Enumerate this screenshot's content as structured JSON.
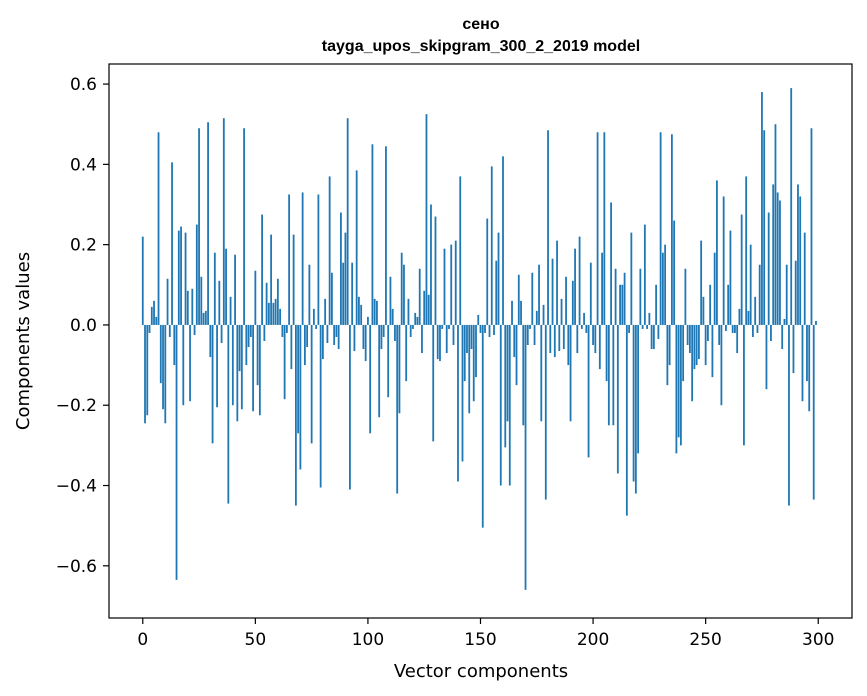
{
  "colors": {
    "bar": "#1f77b4",
    "background": "#ffffff",
    "axis": "#000000"
  },
  "chart_data": {
    "type": "bar",
    "title": "сено",
    "subtitle": "tayga_upos_skipgram_300_2_2019 model",
    "xlabel": "Vector components",
    "ylabel": "Components values",
    "xlim": [
      -15,
      315
    ],
    "ylim": [
      -0.73,
      0.65
    ],
    "xticks": [
      0,
      50,
      100,
      150,
      200,
      250,
      300
    ],
    "xtick_labels": [
      "0",
      "50",
      "100",
      "150",
      "200",
      "250",
      "300"
    ],
    "yticks": [
      -0.6,
      -0.4,
      -0.2,
      0.0,
      0.2,
      0.4,
      0.6
    ],
    "ytick_labels": [
      "−0.6",
      "−0.4",
      "−0.2",
      "0.0",
      "0.2",
      "0.4",
      "0.6"
    ],
    "grid": false,
    "legend": "none",
    "x_start": 0,
    "values": [
      0.22,
      -0.245,
      -0.225,
      -0.02,
      0.045,
      0.06,
      0.02,
      0.48,
      -0.145,
      -0.21,
      -0.245,
      0.115,
      -0.03,
      0.405,
      -0.1,
      -0.635,
      0.235,
      0.245,
      -0.2,
      0.23,
      0.085,
      -0.19,
      0.09,
      -0.025,
      0.25,
      0.49,
      0.12,
      0.03,
      0.035,
      0.505,
      -0.08,
      -0.295,
      0.18,
      -0.205,
      0.11,
      -0.045,
      0.515,
      0.19,
      -0.445,
      0.07,
      -0.2,
      0.175,
      -0.24,
      -0.115,
      -0.21,
      0.49,
      -0.1,
      -0.055,
      -0.03,
      -0.215,
      0.135,
      -0.15,
      -0.225,
      0.275,
      -0.04,
      0.105,
      0.055,
      0.225,
      0.055,
      0.065,
      0.115,
      0.04,
      -0.03,
      -0.185,
      -0.02,
      0.325,
      -0.11,
      0.225,
      -0.45,
      -0.27,
      -0.36,
      0.33,
      -0.1,
      -0.055,
      0.15,
      -0.295,
      0.04,
      -0.01,
      0.325,
      -0.405,
      -0.085,
      0.065,
      -0.045,
      0.37,
      0.13,
      -0.05,
      -0.03,
      -0.06,
      0.28,
      0.155,
      0.23,
      0.515,
      -0.41,
      0.155,
      -0.065,
      0.385,
      0.07,
      0.05,
      -0.06,
      -0.09,
      0.02,
      -0.27,
      0.45,
      0.065,
      0.06,
      -0.23,
      -0.06,
      -0.03,
      0.445,
      -0.18,
      0.12,
      0.04,
      -0.04,
      -0.42,
      -0.22,
      0.18,
      0.15,
      -0.14,
      0.065,
      -0.03,
      -0.01,
      0.03,
      0.02,
      0.14,
      -0.07,
      0.085,
      0.525,
      0.075,
      0.3,
      -0.29,
      0.27,
      -0.085,
      -0.09,
      -0.01,
      0.19,
      -0.07,
      -0.01,
      0.2,
      -0.05,
      0.21,
      -0.39,
      0.37,
      -0.34,
      -0.14,
      -0.07,
      -0.22,
      -0.06,
      -0.19,
      -0.13,
      0.025,
      -0.02,
      -0.505,
      -0.02,
      0.265,
      -0.03,
      0.395,
      -0.025,
      0.16,
      0.23,
      -0.4,
      0.42,
      -0.305,
      -0.24,
      -0.4,
      0.06,
      -0.08,
      -0.15,
      0.125,
      0.06,
      -0.25,
      -0.66,
      -0.05,
      -0.01,
      0.13,
      -0.05,
      0.035,
      0.15,
      -0.24,
      0.05,
      -0.435,
      0.485,
      -0.07,
      0.165,
      -0.08,
      0.21,
      -0.065,
      0.065,
      -0.06,
      0.12,
      -0.1,
      -0.24,
      0.11,
      0.19,
      -0.07,
      0.22,
      -0.01,
      0.03,
      -0.02,
      -0.33,
      0.155,
      -0.05,
      -0.07,
      0.48,
      -0.11,
      0.18,
      0.48,
      -0.14,
      -0.25,
      0.305,
      -0.25,
      0.14,
      -0.37,
      0.1,
      0.1,
      0.13,
      -0.475,
      -0.02,
      0.23,
      -0.39,
      -0.42,
      -0.32,
      0.14,
      -0.01,
      0.25,
      -0.01,
      0.03,
      -0.06,
      -0.06,
      0.1,
      -0.035,
      0.48,
      0.18,
      0.2,
      -0.15,
      -0.1,
      0.475,
      0.26,
      -0.32,
      -0.28,
      -0.3,
      -0.14,
      0.14,
      -0.05,
      -0.07,
      -0.19,
      -0.11,
      -0.1,
      -0.085,
      0.21,
      0.07,
      -0.1,
      -0.04,
      0.1,
      -0.13,
      0.18,
      0.36,
      -0.05,
      -0.2,
      0.32,
      -0.015,
      0.1,
      0.235,
      -0.02,
      -0.02,
      -0.07,
      0.04,
      0.275,
      -0.3,
      0.37,
      0.035,
      0.2,
      -0.03,
      0.07,
      -0.02,
      0.15,
      0.58,
      0.485,
      -0.16,
      0.28,
      -0.04,
      0.35,
      0.5,
      0.33,
      0.31,
      -0.06,
      0.015,
      0.15,
      -0.45,
      0.59,
      -0.12,
      0.16,
      0.35,
      0.32,
      -0.19,
      0.23,
      -0.14,
      -0.215,
      0.49,
      -0.435,
      0.01
    ]
  }
}
